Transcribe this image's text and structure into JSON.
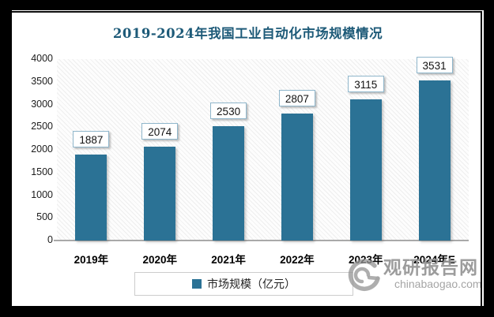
{
  "chart_data": {
    "type": "bar",
    "title": "2019-2024年我国工业自动化市场规模情况",
    "categories": [
      "2019年",
      "2020年",
      "2021年",
      "2022年",
      "2023年",
      "2024年E"
    ],
    "values": [
      1887,
      2074,
      2530,
      2807,
      3115,
      3531
    ],
    "series_name": "市场规模（亿元）",
    "xlabel": "",
    "ylabel": "",
    "ylim": [
      0,
      4000
    ],
    "ytick_interval": 500,
    "yticks": [
      0,
      500,
      1000,
      1500,
      2000,
      2500,
      3000,
      3500,
      4000
    ],
    "grid": false,
    "legend_position": "bottom",
    "data_labels": true,
    "bar_color": "#2b7295",
    "title_color": "#1d5a78",
    "plot_background": "diagonal-hatch"
  },
  "legend": {
    "label": "市场规模（亿元）",
    "swatch_color": "#2b7295"
  },
  "watermark": {
    "brand": "观研报告网",
    "domain": "chinabaogao.com",
    "logo": "g-swirl-logo",
    "color": "#949494"
  }
}
